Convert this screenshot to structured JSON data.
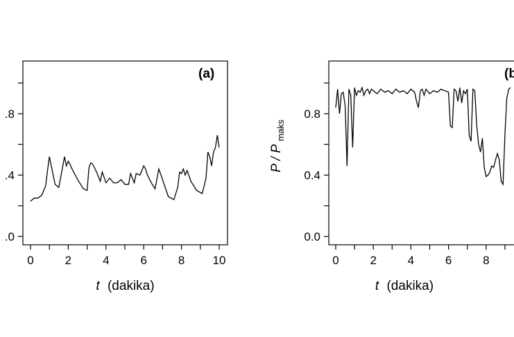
{
  "chart_data": [
    {
      "type": "line",
      "panel_label": "(a)",
      "xlabel_var": "t",
      "xlabel_unit": "(dakika)",
      "ylabel": "",
      "xlim": [
        0,
        10
      ],
      "ylim": [
        0,
        1.0
      ],
      "x_ticks": [
        0,
        2,
        4,
        6,
        8,
        10
      ],
      "y_ticks": [
        0.0,
        0.4,
        0.8
      ],
      "y_tick_labels": [
        ".0",
        ".4",
        ".8"
      ],
      "series": [
        {
          "x": [
            0,
            0.2,
            0.4,
            0.6,
            0.8,
            0.9,
            1.0,
            1.1,
            1.3,
            1.5,
            1.7,
            1.8,
            1.9,
            2.0,
            2.1,
            2.2,
            2.5,
            2.8,
            3.0,
            3.1,
            3.2,
            3.3,
            3.5,
            3.7,
            3.8,
            4.0,
            4.2,
            4.4,
            4.6,
            4.8,
            5.0,
            5.2,
            5.3,
            5.5,
            5.6,
            5.8,
            6.0,
            6.1,
            6.2,
            6.4,
            6.6,
            6.8,
            7.0,
            7.3,
            7.6,
            7.8,
            7.9,
            8.0,
            8.1,
            8.2,
            8.3,
            8.5,
            8.8,
            9.1,
            9.3,
            9.4,
            9.5,
            9.6,
            9.7,
            9.8,
            9.9,
            10.0
          ],
          "y": [
            0.23,
            0.25,
            0.25,
            0.27,
            0.33,
            0.43,
            0.52,
            0.46,
            0.34,
            0.32,
            0.45,
            0.52,
            0.46,
            0.49,
            0.47,
            0.44,
            0.37,
            0.31,
            0.3,
            0.45,
            0.48,
            0.47,
            0.42,
            0.36,
            0.42,
            0.35,
            0.38,
            0.35,
            0.35,
            0.37,
            0.34,
            0.34,
            0.41,
            0.35,
            0.41,
            0.4,
            0.46,
            0.44,
            0.4,
            0.35,
            0.31,
            0.44,
            0.37,
            0.26,
            0.24,
            0.32,
            0.42,
            0.41,
            0.44,
            0.4,
            0.43,
            0.36,
            0.3,
            0.28,
            0.38,
            0.55,
            0.52,
            0.46,
            0.55,
            0.58,
            0.66,
            0.58
          ]
        }
      ]
    },
    {
      "type": "line",
      "panel_label": "(b)",
      "xlabel_var": "t",
      "xlabel_unit": "(dakika)",
      "ylabel_main": "P / P",
      "ylabel_sub": "maks",
      "xlim": [
        0,
        10
      ],
      "ylim": [
        0,
        1.0
      ],
      "x_ticks": [
        0,
        2,
        4,
        6,
        8
      ],
      "y_ticks": [
        0.0,
        0.4,
        0.8
      ],
      "y_tick_labels": [
        "0.0",
        "0.4",
        "0.8"
      ],
      "series": [
        {
          "x": [
            0,
            0.1,
            0.2,
            0.3,
            0.4,
            0.5,
            0.6,
            0.7,
            0.8,
            0.9,
            1.0,
            1.1,
            1.2,
            1.3,
            1.4,
            1.5,
            1.6,
            1.7,
            1.8,
            1.9,
            2.0,
            2.2,
            2.4,
            2.6,
            2.8,
            3.0,
            3.2,
            3.4,
            3.6,
            3.8,
            4.0,
            4.2,
            4.3,
            4.4,
            4.5,
            4.6,
            4.7,
            4.8,
            5.0,
            5.2,
            5.4,
            5.6,
            5.8,
            6.0,
            6.1,
            6.2,
            6.3,
            6.4,
            6.5,
            6.6,
            6.7,
            6.8,
            6.9,
            7.0,
            7.1,
            7.2,
            7.3,
            7.4,
            7.5,
            7.6,
            7.7,
            7.8,
            7.9,
            8.0,
            8.1,
            8.2,
            8.3,
            8.4,
            8.5,
            8.6,
            8.7,
            8.8,
            8.9,
            9.0,
            9.1,
            9.2,
            9.3
          ],
          "y": [
            0.84,
            0.96,
            0.8,
            0.93,
            0.94,
            0.85,
            0.46,
            0.96,
            0.92,
            0.58,
            0.97,
            0.92,
            0.95,
            0.94,
            0.97,
            0.92,
            0.95,
            0.96,
            0.93,
            0.96,
            0.95,
            0.93,
            0.96,
            0.94,
            0.95,
            0.93,
            0.96,
            0.94,
            0.95,
            0.93,
            0.96,
            0.94,
            0.88,
            0.84,
            0.95,
            0.96,
            0.92,
            0.96,
            0.93,
            0.95,
            0.94,
            0.96,
            0.95,
            0.94,
            0.72,
            0.71,
            0.96,
            0.95,
            0.88,
            0.97,
            0.87,
            0.95,
            0.93,
            0.96,
            0.66,
            0.62,
            0.96,
            0.95,
            0.72,
            0.6,
            0.55,
            0.64,
            0.45,
            0.39,
            0.4,
            0.42,
            0.46,
            0.45,
            0.5,
            0.54,
            0.5,
            0.36,
            0.34,
            0.66,
            0.9,
            0.96,
            0.97
          ]
        }
      ]
    }
  ]
}
